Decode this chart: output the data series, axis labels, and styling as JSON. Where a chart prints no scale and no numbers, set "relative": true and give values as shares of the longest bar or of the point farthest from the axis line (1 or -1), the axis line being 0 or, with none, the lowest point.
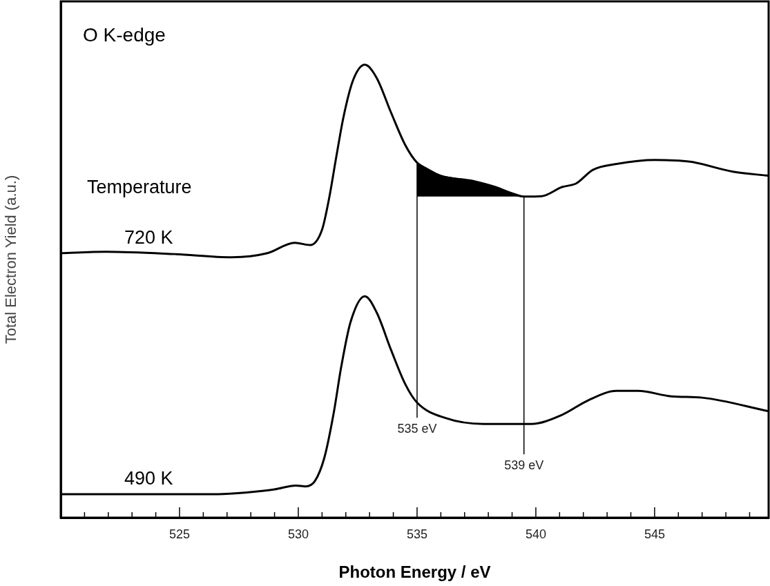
{
  "chart_data": {
    "type": "line",
    "title": "O K-edge",
    "xlabel": "Photon Energy / eV",
    "ylabel": "Total Electron Yield (a.u.)",
    "relative": true,
    "tick_labels": "x",
    "legend": false,
    "grid": false,
    "marker": "none",
    "line_style": "solid",
    "annotations": [
      "Temperature"
    ],
    "xlim": [
      520,
      549.8
    ],
    "xticks": [
      {
        "value": 521,
        "label": null
      },
      {
        "value": 522,
        "label": null
      },
      {
        "value": 523,
        "label": null
      },
      {
        "value": 524,
        "label": null
      },
      525,
      {
        "value": 526,
        "label": null
      },
      {
        "value": 527,
        "label": null
      },
      {
        "value": 528,
        "label": null
      },
      {
        "value": 529,
        "label": null
      },
      530,
      {
        "value": 531,
        "label": null
      },
      {
        "value": 532,
        "label": null
      },
      {
        "value": 533,
        "label": null
      },
      {
        "value": 534,
        "label": null
      },
      535,
      {
        "value": 536,
        "label": null
      },
      {
        "value": 537,
        "label": null
      },
      {
        "value": 538,
        "label": null
      },
      {
        "value": 539,
        "label": null
      },
      540,
      {
        "value": 541,
        "label": null
      },
      {
        "value": 542,
        "label": null
      },
      {
        "value": 543,
        "label": null
      },
      {
        "value": 544,
        "label": null
      },
      545,
      {
        "value": 546,
        "label": null
      },
      {
        "value": 547,
        "label": null
      },
      {
        "value": 548,
        "label": null
      },
      {
        "value": 549,
        "label": null
      }
    ],
    "ref_lines": [
      {
        "axis": "x",
        "value": 535,
        "label": "535 eV",
        "color": "#000000"
      },
      {
        "axis": "x",
        "value": 539.5,
        "label": "539 eV",
        "color": "#000000"
      }
    ],
    "series": [
      {
        "name": "720 K",
        "color": "#000000",
        "x": [
          520,
          521.9,
          524.8,
          527.2,
          528.7,
          529.85,
          530.5,
          531.0,
          531.3,
          531.6,
          531.9,
          532.3,
          532.8,
          533.3,
          533.9,
          534.5,
          535.0,
          536.0,
          537.3,
          538.3,
          539.5,
          540.25,
          541.1,
          541.7,
          542.4,
          543.4,
          545.0,
          546.5,
          548.3,
          549.8
        ],
        "values": [
          0.584,
          0.587,
          0.582,
          0.575,
          0.584,
          0.607,
          0.602,
          0.636,
          0.706,
          0.797,
          0.884,
          0.965,
          1,
          0.971,
          0.895,
          0.823,
          0.784,
          0.755,
          0.744,
          0.73,
          0.709,
          0.71,
          0.73,
          0.738,
          0.768,
          0.781,
          0.79,
          0.786,
          0.764,
          0.755
        ]
      },
      {
        "name": "490 K",
        "color": "#000000",
        "x": [
          520,
          526.6,
          527.9,
          529.0,
          529.9,
          530.3,
          530.7,
          531.1,
          531.5,
          531.8,
          532.2,
          532.8,
          533.3,
          533.9,
          534.5,
          535.0,
          536.2,
          537.8,
          539.8,
          541.1,
          542.2,
          543.4,
          544.3,
          545.7,
          547.0,
          549.8
        ],
        "values": [
          0.052,
          0.052,
          0.056,
          0.0625,
          0.071,
          0.069,
          0.081,
          0.133,
          0.234,
          0.331,
          0.432,
          0.489,
          0.453,
          0.371,
          0.295,
          0.254,
          0.22,
          0.207,
          0.207,
          0.227,
          0.259,
          0.28,
          0.28,
          0.268,
          0.265,
          0.235
        ]
      },
      {
        "type": "area",
        "color": "#000000",
        "x": [
          535.0,
          536.0,
          537.3,
          538.3,
          539.5
        ],
        "values": [
          0.784,
          0.755,
          0.744,
          0.73,
          0.709
        ]
      }
    ]
  }
}
